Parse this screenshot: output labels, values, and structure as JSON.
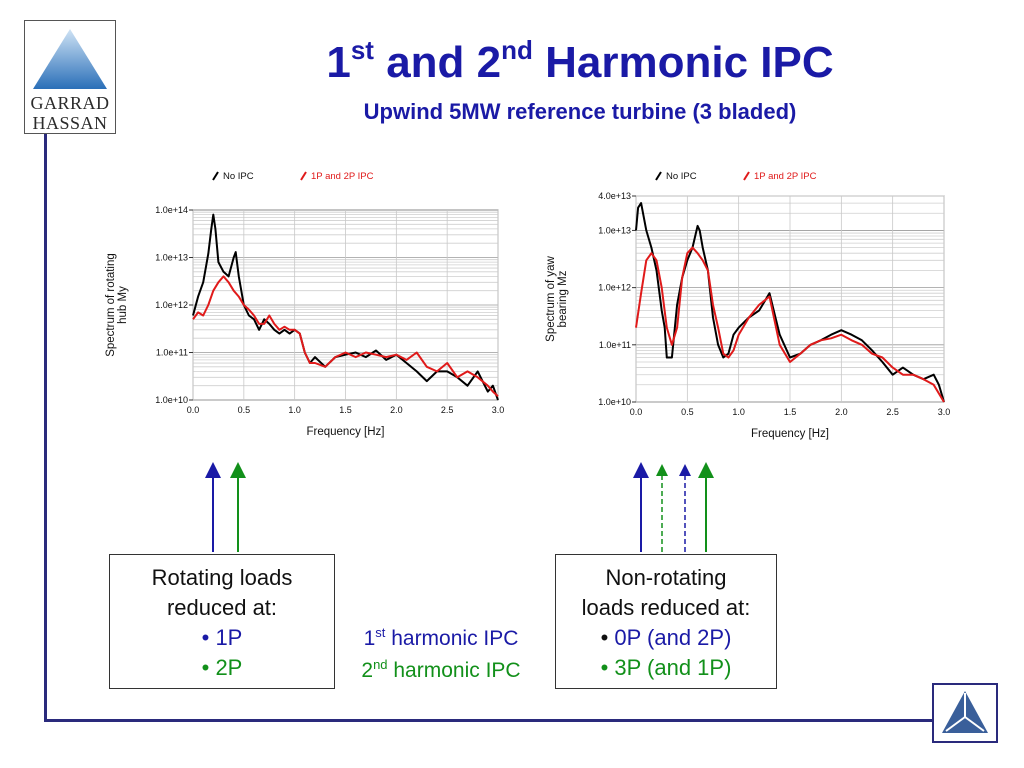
{
  "logo": {
    "line1": "GARRAD",
    "line2": "HASSAN"
  },
  "slide": {
    "title_n1": "1",
    "title_sup1": "st",
    "title_mid": " and 2",
    "title_sup2": "nd",
    "title_tail": " Harmonic IPC",
    "subtitle": "Upwind 5MW reference turbine (3 bladed)"
  },
  "left_box": {
    "line1": "Rotating loads",
    "line2": "reduced at:",
    "bullet1": "• 1P",
    "bullet2": "• 2P"
  },
  "right_box": {
    "line1": "Non-rotating",
    "line2": "loads reduced at:",
    "bullet1_dot": "• ",
    "bullet1": "0P (and 2P)",
    "bullet2": "• 3P (and 1P)"
  },
  "ipc_labels": {
    "first_num": "1",
    "first_sup": "st",
    "first_text": " harmonic IPC",
    "second_num": "2",
    "second_sup": "nd",
    "second_text": " harmonic IPC"
  },
  "colors": {
    "title": "#1a1aa6",
    "frame": "#2a2a7c",
    "no_ipc": "#000000",
    "ipc": "#e01a1a",
    "first_harmonic": "#1a1aa6",
    "second_harmonic": "#12901a"
  },
  "chart_data": [
    {
      "type": "line",
      "title": "",
      "xlabel": "Frequency [Hz]",
      "ylabel_line1": "Spectrum of rotating",
      "ylabel_line2": "hub My",
      "y_scale": "log",
      "xlim": [
        0,
        3.0
      ],
      "ylim": [
        10000000000.0,
        100000000000000.0
      ],
      "x_ticks": [
        "0.0",
        "0.5",
        "1.0",
        "1.5",
        "2.0",
        "2.5",
        "3.0"
      ],
      "y_ticks": [
        "1.0e+10",
        "1.0e+11",
        "1.0e+12",
        "1.0e+13",
        "1.0e+14"
      ],
      "legend": {
        "placement": "top"
      },
      "series": [
        {
          "name": "No IPC",
          "color": "#000000",
          "x": [
            0.0,
            0.05,
            0.1,
            0.15,
            0.18,
            0.2,
            0.22,
            0.25,
            0.3,
            0.35,
            0.4,
            0.42,
            0.45,
            0.5,
            0.55,
            0.6,
            0.65,
            0.7,
            0.75,
            0.8,
            0.85,
            0.9,
            0.95,
            1.0,
            1.05,
            1.1,
            1.15,
            1.2,
            1.3,
            1.4,
            1.5,
            1.6,
            1.7,
            1.8,
            1.9,
            2.0,
            2.1,
            2.2,
            2.3,
            2.4,
            2.5,
            2.6,
            2.7,
            2.8,
            2.9,
            2.95,
            3.0
          ],
          "values": [
            600000000000.0,
            1500000000000.0,
            3000000000000.0,
            12000000000000.0,
            40000000000000.0,
            80000000000000.0,
            40000000000000.0,
            8000000000000.0,
            5000000000000.0,
            4000000000000.0,
            10000000000000.0,
            13000000000000.0,
            4000000000000.0,
            1000000000000.0,
            600000000000.0,
            500000000000.0,
            300000000000.0,
            500000000000.0,
            400000000000.0,
            300000000000.0,
            250000000000.0,
            300000000000.0,
            250000000000.0,
            300000000000.0,
            250000000000.0,
            100000000000.0,
            60000000000.0,
            80000000000.0,
            50000000000.0,
            80000000000.0,
            90000000000.0,
            100000000000.0,
            80000000000.0,
            110000000000.0,
            70000000000.0,
            90000000000.0,
            60000000000.0,
            40000000000.0,
            25000000000.0,
            40000000000.0,
            40000000000.0,
            30000000000.0,
            20000000000.0,
            40000000000.0,
            15000000000.0,
            20000000000.0,
            10000000000.0
          ]
        },
        {
          "name": "1P and 2P IPC",
          "color": "#e01a1a",
          "x": [
            0.0,
            0.05,
            0.1,
            0.15,
            0.2,
            0.25,
            0.3,
            0.35,
            0.4,
            0.45,
            0.5,
            0.55,
            0.6,
            0.65,
            0.7,
            0.75,
            0.8,
            0.85,
            0.9,
            0.95,
            1.0,
            1.05,
            1.1,
            1.15,
            1.2,
            1.3,
            1.4,
            1.5,
            1.6,
            1.7,
            1.8,
            1.9,
            2.0,
            2.1,
            2.2,
            2.3,
            2.4,
            2.5,
            2.6,
            2.7,
            2.8,
            2.9,
            2.95,
            3.0
          ],
          "values": [
            500000000000.0,
            700000000000.0,
            600000000000.0,
            1000000000000.0,
            2000000000000.0,
            3000000000000.0,
            4000000000000.0,
            3000000000000.0,
            2000000000000.0,
            1500000000000.0,
            1000000000000.0,
            800000000000.0,
            600000000000.0,
            400000000000.0,
            400000000000.0,
            600000000000.0,
            400000000000.0,
            300000000000.0,
            350000000000.0,
            300000000000.0,
            300000000000.0,
            250000000000.0,
            100000000000.0,
            60000000000.0,
            60000000000.0,
            50000000000.0,
            80000000000.0,
            100000000000.0,
            80000000000.0,
            100000000000.0,
            90000000000.0,
            80000000000.0,
            90000000000.0,
            70000000000.0,
            100000000000.0,
            50000000000.0,
            40000000000.0,
            60000000000.0,
            30000000000.0,
            40000000000.0,
            30000000000.0,
            20000000000.0,
            15000000000.0,
            12000000000.0
          ]
        }
      ]
    },
    {
      "type": "line",
      "title": "",
      "xlabel": "Frequency [Hz]",
      "ylabel_line1": "Spectrum of yaw",
      "ylabel_line2": "bearing Mz",
      "y_scale": "log",
      "xlim": [
        0,
        3.0
      ],
      "ylim": [
        10000000000.0,
        40000000000000.0
      ],
      "x_ticks": [
        "0.0",
        "0.5",
        "1.0",
        "1.5",
        "2.0",
        "2.5",
        "3.0"
      ],
      "y_ticks": [
        "1.0e+10",
        "1.0e+11",
        "1.0e+12",
        "1.0e+13",
        "4.0e+13"
      ],
      "legend": {
        "placement": "top"
      },
      "series": [
        {
          "name": "No IPC",
          "color": "#000000",
          "x": [
            0.0,
            0.02,
            0.05,
            0.1,
            0.15,
            0.2,
            0.25,
            0.28,
            0.3,
            0.35,
            0.4,
            0.45,
            0.5,
            0.55,
            0.6,
            0.62,
            0.65,
            0.7,
            0.75,
            0.8,
            0.85,
            0.9,
            0.95,
            1.0,
            1.1,
            1.2,
            1.3,
            1.4,
            1.5,
            1.6,
            1.7,
            1.8,
            1.9,
            2.0,
            2.1,
            2.2,
            2.3,
            2.4,
            2.5,
            2.6,
            2.7,
            2.8,
            2.9,
            2.95,
            3.0
          ],
          "values": [
            10000000000000.0,
            25000000000000.0,
            30000000000000.0,
            10000000000000.0,
            5000000000000.0,
            2000000000000.0,
            400000000000.0,
            200000000000.0,
            60000000000.0,
            60000000000.0,
            500000000000.0,
            1500000000000.0,
            3000000000000.0,
            5000000000000.0,
            12000000000000.0,
            10000000000000.0,
            5000000000000.0,
            2000000000000.0,
            300000000000.0,
            100000000000.0,
            60000000000.0,
            70000000000.0,
            150000000000.0,
            200000000000.0,
            300000000000.0,
            400000000000.0,
            800000000000.0,
            150000000000.0,
            60000000000.0,
            70000000000.0,
            100000000000.0,
            120000000000.0,
            150000000000.0,
            180000000000.0,
            150000000000.0,
            120000000000.0,
            80000000000.0,
            50000000000.0,
            30000000000.0,
            40000000000.0,
            30000000000.0,
            25000000000.0,
            30000000000.0,
            20000000000.0,
            10000000000.0
          ]
        },
        {
          "name": "1P and 2P IPC",
          "color": "#e01a1a",
          "x": [
            0.0,
            0.05,
            0.1,
            0.15,
            0.2,
            0.25,
            0.3,
            0.35,
            0.4,
            0.45,
            0.5,
            0.55,
            0.6,
            0.65,
            0.7,
            0.75,
            0.8,
            0.85,
            0.9,
            0.95,
            1.0,
            1.1,
            1.2,
            1.3,
            1.4,
            1.5,
            1.6,
            1.7,
            1.8,
            1.9,
            2.0,
            2.1,
            2.2,
            2.3,
            2.4,
            2.5,
            2.6,
            2.7,
            2.8,
            2.9,
            3.0
          ],
          "values": [
            200000000000.0,
            800000000000.0,
            3000000000000.0,
            4000000000000.0,
            3000000000000.0,
            1000000000000.0,
            200000000000.0,
            100000000000.0,
            200000000000.0,
            1500000000000.0,
            4000000000000.0,
            5000000000000.0,
            4000000000000.0,
            3000000000000.0,
            2000000000000.0,
            500000000000.0,
            200000000000.0,
            70000000000.0,
            60000000000.0,
            80000000000.0,
            150000000000.0,
            300000000000.0,
            500000000000.0,
            700000000000.0,
            100000000000.0,
            50000000000.0,
            70000000000.0,
            100000000000.0,
            120000000000.0,
            130000000000.0,
            150000000000.0,
            120000000000.0,
            100000000000.0,
            70000000000.0,
            60000000000.0,
            40000000000.0,
            30000000000.0,
            30000000000.0,
            25000000000.0,
            20000000000.0,
            10000000000.0
          ]
        }
      ]
    }
  ]
}
